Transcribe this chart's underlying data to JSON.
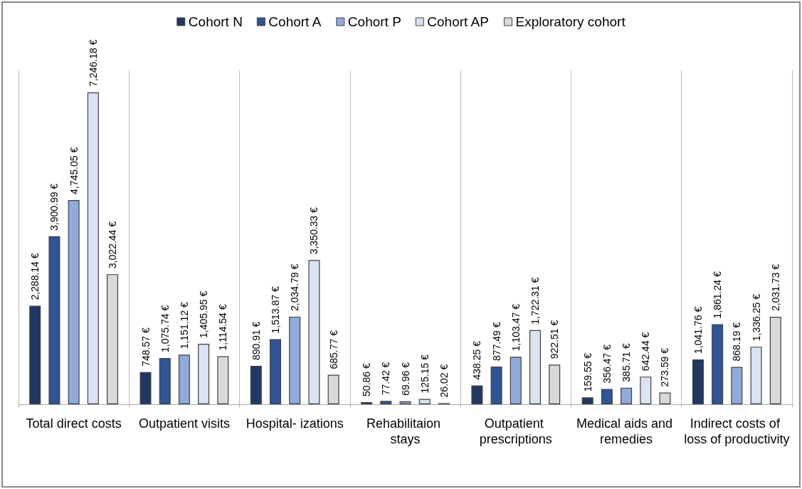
{
  "chart_data": {
    "type": "bar",
    "categories": [
      "Total direct costs",
      "Outpatient visits",
      "Hospital- izations",
      "Rehabilitaion stays",
      "Outpatient prescriptions",
      "Medical aids and remedies",
      "Indirect costs of loss of productivity"
    ],
    "series": [
      {
        "name": "Cohort N",
        "color": "#203864",
        "values": [
          2288.14,
          748.57,
          890.91,
          50.86,
          438.25,
          159.55,
          1041.76
        ],
        "value_labels": [
          "2,288.14 €",
          "748.57 €",
          "890.91 €",
          "50.86 €",
          "438.25 €",
          "159.55 €",
          "1,041.76 €"
        ]
      },
      {
        "name": "Cohort A",
        "color": "#2f5597",
        "values": [
          3900.99,
          1075.74,
          1513.87,
          77.42,
          877.49,
          356.47,
          1861.24
        ],
        "value_labels": [
          "3,900.99 €",
          "1,075.74 €",
          "1,513.87 €",
          "77.42 €",
          "877.49 €",
          "356.47 €",
          "1,861.24 €"
        ]
      },
      {
        "name": "Cohort P",
        "color": "#8faadc",
        "values": [
          4745.05,
          1151.12,
          2034.79,
          69.96,
          1103.47,
          385.71,
          868.19
        ],
        "value_labels": [
          "4,745.05 €",
          "1,151.12 €",
          "2,034.79 €",
          "69.96 €",
          "1,103.47 €",
          "385.71 €",
          "868.19 €"
        ]
      },
      {
        "name": "Cohort AP",
        "color": "#dae3f3",
        "values": [
          7246.18,
          1405.95,
          3350.33,
          125.15,
          1722.31,
          642.44,
          1336.25
        ],
        "value_labels": [
          "7,246.18 €",
          "1,405.95 €",
          "3,350.33 €",
          "125.15 €",
          "1,722.31 €",
          "642.44 €",
          "1,336.25 €"
        ]
      },
      {
        "name": "Exploratory cohort",
        "color": "#d9d9d9",
        "values": [
          3022.44,
          1114.54,
          685.77,
          26.02,
          922.51,
          273.59,
          2031.73
        ],
        "value_labels": [
          "3,022.44 €",
          "1,114.54 €",
          "685.77 €",
          "26.02 €",
          "922.51 €",
          "273.59 €",
          "2,031.73 €"
        ]
      }
    ],
    "grid": "x",
    "legend": "top"
  }
}
